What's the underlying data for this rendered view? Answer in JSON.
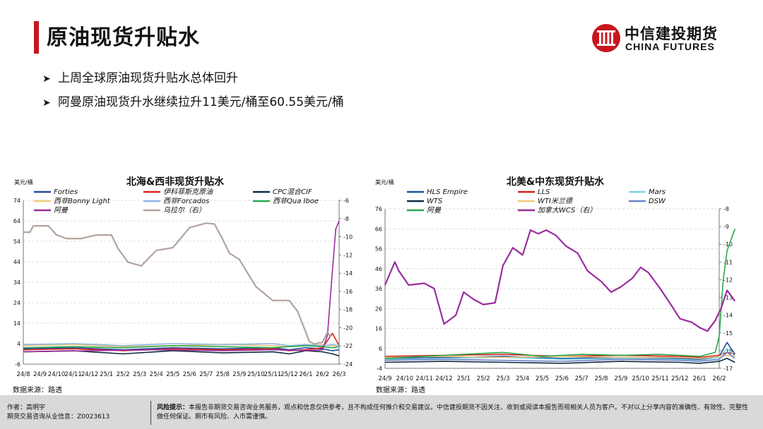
{
  "header": {
    "title": "原油现货升贴水",
    "logo_cn": "中信建投期货",
    "logo_en": "CHINA FUTURES"
  },
  "bullets": [
    "上周全球原油现货升贴水总体回升",
    "阿曼原油现货升水继续拉升11美元/桶至60.55美元/桶"
  ],
  "footer": {
    "author_line1": "作者：高明宇",
    "author_line2": "期货交易咨询从业信息：Z0023613",
    "risk_label": "风险提示：",
    "risk_text": "本报告非期货交易咨询业务服务，观点和信息仅供参考，且不构成任何推介和交易建议。中信建投期货不因关注、收到或阅读本报告而视相关人员为客户。不对以上分享内容的准确性、有效性、完整性做任何保证。期市有风险、入市需谨慎。"
  },
  "colors": {
    "accent": "#c8161d"
  },
  "chart_data": [
    {
      "type": "line",
      "title": "北海&西非现货升贴水",
      "ylabel": "美元/桶",
      "source": "数据来源：路透",
      "x_ticks": [
        "24/8",
        "24/9",
        "24/10",
        "24/11",
        "24/12",
        "25/1",
        "25/2",
        "25/3",
        "25/4",
        "25/5",
        "25/6",
        "25/7",
        "25/8",
        "25/9",
        "25/10",
        "25/11",
        "25/12",
        "26/1",
        "26/2",
        "26/3"
      ],
      "ylim": [
        -6,
        74
      ],
      "y_ticks": [
        -6,
        4,
        14,
        24,
        34,
        44,
        54,
        64,
        74
      ],
      "ylim_right": [
        -24,
        -6
      ],
      "y_ticks_right": [
        -24,
        -22,
        -20,
        -18,
        -16,
        -14,
        -12,
        -10,
        -8,
        -6
      ],
      "series": [
        {
          "name": "Forties",
          "color": "#1f4e9a",
          "axis": "left",
          "x": [
            0,
            3,
            6,
            9,
            12,
            15,
            16,
            17,
            18,
            18.6,
            19
          ],
          "y": [
            1.5,
            2,
            1,
            2,
            1.5,
            2,
            1,
            2,
            1.5,
            0.5,
            1
          ]
        },
        {
          "name": "伊科菲斯克原油",
          "color": "#d62020",
          "axis": "left",
          "x": [
            0,
            3,
            6,
            9,
            12,
            15,
            16,
            17,
            18,
            18.6,
            19
          ],
          "y": [
            1,
            1.5,
            0.5,
            1.5,
            1,
            1.5,
            0.5,
            1,
            2,
            9,
            3
          ]
        },
        {
          "name": "CPC混合CIF",
          "color": "#0f2a3d",
          "axis": "left",
          "x": [
            0,
            3,
            6,
            9,
            12,
            15,
            16,
            17,
            18,
            18.6,
            19
          ],
          "y": [
            0,
            0.5,
            -1,
            0.5,
            -0.5,
            0,
            -1,
            0.5,
            0,
            -1,
            -2
          ]
        },
        {
          "name": "西非Bonny Light",
          "color": "#f2c97a",
          "axis": "left",
          "x": [
            0,
            3,
            6,
            9,
            12,
            15,
            16,
            17,
            18,
            18.6,
            19
          ],
          "y": [
            3,
            3.5,
            2.5,
            3,
            3.5,
            3,
            2.5,
            3,
            3.5,
            3,
            3.2
          ]
        },
        {
          "name": "西非Forcados",
          "color": "#8db4e2",
          "axis": "left",
          "x": [
            0,
            3,
            6,
            9,
            12,
            15,
            16,
            17,
            18,
            18.6,
            19
          ],
          "y": [
            3.5,
            4,
            3,
            4,
            3.5,
            4,
            3,
            3.5,
            3,
            3.5,
            3
          ]
        },
        {
          "name": "西非Qua Iboe",
          "color": "#2aa84a",
          "axis": "left",
          "x": [
            0,
            3,
            6,
            9,
            12,
            15,
            16,
            17,
            18,
            18.6,
            19
          ],
          "y": [
            2,
            2.5,
            2,
            3,
            2.5,
            2,
            2.5,
            3,
            2.5,
            2,
            2.5
          ]
        },
        {
          "name": "阿曼",
          "color": "#9b2d9e",
          "axis": "left",
          "x": [
            0,
            4,
            8,
            12,
            15,
            17,
            18,
            18.3,
            18.6,
            18.8,
            19
          ],
          "y": [
            0,
            0.5,
            1,
            0.5,
            1,
            0.5,
            1,
            8,
            40,
            60,
            64
          ]
        },
        {
          "name": "乌拉尔（右）",
          "color": "#b3a39d",
          "axis": "right",
          "x": [
            0,
            0.4,
            0.6,
            1.5,
            2,
            2.6,
            3.5,
            4.4,
            5.3,
            5.7,
            6.3,
            7.1,
            8,
            9,
            10,
            11,
            11.5,
            12,
            12.4,
            13,
            14,
            15,
            16,
            16.5,
            17,
            17.2,
            17.5,
            18,
            18.3,
            18.5
          ],
          "y": [
            -9.5,
            -9.5,
            -8.8,
            -8.8,
            -9.8,
            -10.2,
            -10.2,
            -9.8,
            -9.8,
            -11.3,
            -12.8,
            -13.2,
            -11.5,
            -11.2,
            -9,
            -8.5,
            -8.6,
            -10.3,
            -11.8,
            -12.5,
            -15.5,
            -17,
            -17,
            -18.2,
            -20.5,
            -21.5,
            -21.8,
            -21.6,
            -20.5,
            -21
          ]
        }
      ]
    },
    {
      "type": "line",
      "title": "北美&中东现货升贴水",
      "ylabel": "美元/桶",
      "source": "数据来源：路透",
      "x_ticks": [
        "24/9",
        "24/10",
        "24/11",
        "24/12",
        "25/1",
        "25/2",
        "25/3",
        "25/4",
        "25/5",
        "25/6",
        "25/7",
        "25/8",
        "25/9",
        "25/10",
        "25/11",
        "25/12",
        "26/1",
        "26/2"
      ],
      "ylim": [
        -4,
        76
      ],
      "y_ticks": [
        -4,
        6,
        16,
        26,
        36,
        46,
        56,
        66,
        76
      ],
      "ylim_right": [
        -17,
        -8
      ],
      "y_ticks_right": [
        -17,
        -16,
        -15,
        -14,
        -13,
        -12,
        -11,
        -10,
        -9,
        -8
      ],
      "series": [
        {
          "name": "HLS Empire",
          "color": "#1f4e9a",
          "axis": "left",
          "x": [
            0,
            3,
            6,
            9,
            12,
            15,
            16,
            17,
            17.4,
            17.8
          ],
          "y": [
            1,
            1.5,
            2,
            1,
            1.5,
            1,
            0.5,
            2,
            9,
            3
          ]
        },
        {
          "name": "LLS",
          "color": "#d62020",
          "axis": "left",
          "x": [
            0,
            3,
            6,
            9,
            12,
            15,
            16,
            17,
            17.4,
            17.8
          ],
          "y": [
            2,
            2.5,
            3,
            2,
            2.5,
            2,
            1.5,
            2.5,
            4,
            3
          ]
        },
        {
          "name": "Mars",
          "color": "#7fd3e6",
          "axis": "left",
          "x": [
            0,
            3,
            6,
            9,
            12,
            15,
            16,
            17,
            17.4,
            17.8
          ],
          "y": [
            0.5,
            1,
            1.5,
            0.5,
            1,
            0.5,
            0,
            1.5,
            6,
            2
          ]
        },
        {
          "name": "WTS",
          "color": "#0f2a3d",
          "axis": "left",
          "x": [
            0,
            3,
            6,
            9,
            12,
            15,
            16,
            17,
            17.4,
            17.8
          ],
          "y": [
            -1,
            -0.5,
            -1,
            -1.5,
            -0.5,
            -1,
            -1.5,
            -0.5,
            1,
            -1
          ]
        },
        {
          "name": "WTI米兰德",
          "color": "#f2c97a",
          "axis": "left",
          "x": [
            0,
            3,
            6,
            9,
            12,
            15,
            16,
            17,
            17.4,
            17.8
          ],
          "y": [
            1.5,
            2,
            1.5,
            2,
            1.5,
            1.5,
            1,
            2,
            2.5,
            2
          ]
        },
        {
          "name": "DSW",
          "color": "#6f82c8",
          "axis": "left",
          "x": [
            0,
            3,
            6,
            9,
            12,
            15,
            16,
            17,
            17.4,
            17.8
          ],
          "y": [
            0,
            0.5,
            0,
            -0.5,
            0.5,
            0,
            -0.5,
            0.5,
            4,
            1
          ]
        },
        {
          "name": "阿曼",
          "color": "#2aa84a",
          "axis": "left",
          "x": [
            0,
            2,
            4,
            6,
            8,
            10,
            12,
            14,
            16,
            16.8,
            17,
            17.2,
            17.4,
            17.8
          ],
          "y": [
            1,
            2,
            3,
            4,
            2,
            3,
            2.5,
            3,
            2,
            4,
            12,
            40,
            55,
            66
          ]
        },
        {
          "name": "加拿大WCS（右）",
          "color": "#9b2d9e",
          "axis": "right",
          "x": [
            0,
            0.5,
            0.7,
            1.2,
            2,
            2.5,
            3,
            3.6,
            4,
            4.5,
            5,
            5.6,
            6,
            6.5,
            7,
            7.4,
            7.8,
            8.2,
            8.7,
            9.2,
            9.8,
            10.3,
            11,
            11.5,
            12,
            12.6,
            13,
            13.4,
            14,
            14.6,
            15,
            15.6,
            16,
            16.4,
            16.8,
            17.1,
            17.4,
            17.8
          ],
          "y": [
            -12.3,
            -11,
            -11.5,
            -12.3,
            -12.2,
            -12.5,
            -14.5,
            -14,
            -12.7,
            -13.1,
            -13.4,
            -13.3,
            -11.2,
            -10.2,
            -10.6,
            -9.2,
            -9.4,
            -9.2,
            -9.5,
            -10.1,
            -10.5,
            -11.5,
            -12.1,
            -12.7,
            -12.4,
            -11.9,
            -11.3,
            -11.6,
            -12.5,
            -13.5,
            -14.2,
            -14.4,
            -14.7,
            -14.9,
            -14.3,
            -13.6,
            -12.6,
            -13.2
          ]
        }
      ]
    }
  ]
}
